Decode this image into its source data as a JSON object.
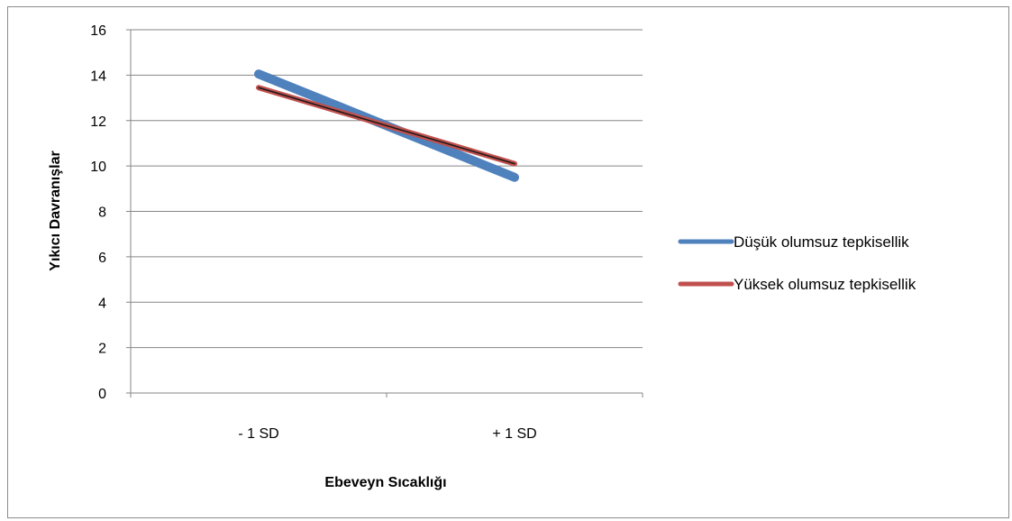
{
  "chart_data": {
    "type": "line",
    "title": "",
    "xlabel": "Ebeveyn Sıcaklığı",
    "ylabel": "Yıkıcı Davranışlar",
    "categories": [
      "- 1 SD",
      "+ 1 SD"
    ],
    "ylim": [
      0,
      16
    ],
    "yticks": [
      0,
      2,
      4,
      6,
      8,
      10,
      12,
      14,
      16
    ],
    "grid": true,
    "legend_position": "right",
    "series": [
      {
        "name": "Düşük olumsuz tepkisellik",
        "values": [
          14.05,
          9.5
        ],
        "color": "#4f81bd"
      },
      {
        "name": "Yüksek olumsuz tepkisellik",
        "values": [
          13.45,
          10.1
        ],
        "color": "#c0504d"
      }
    ]
  }
}
